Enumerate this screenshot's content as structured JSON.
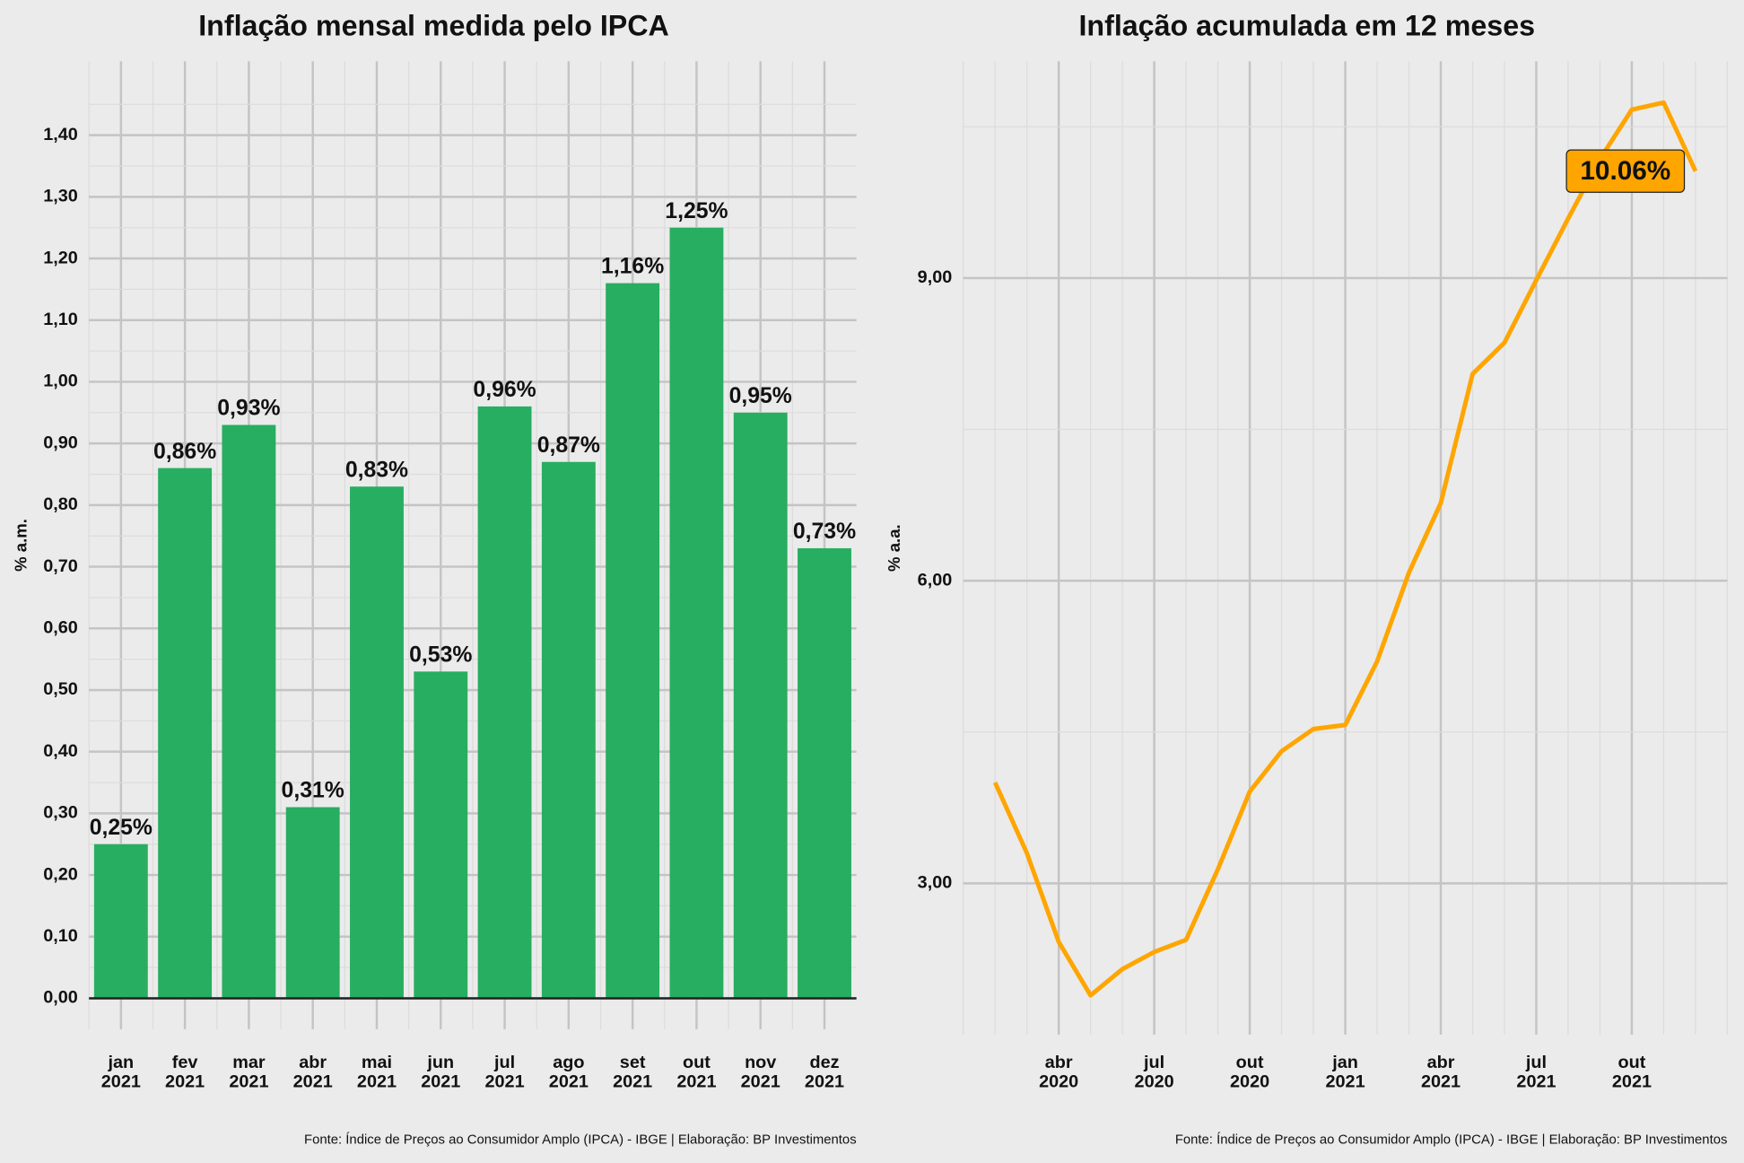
{
  "chart_data": [
    {
      "type": "bar",
      "title": "Inflação mensal medida pelo IPCA",
      "y_label": "% a.m.",
      "caption": "Fonte: Índice de Preços ao Consumidor Amplo (IPCA) - IBGE | Elaboração: BP Investimentos",
      "categories": [
        "jan\n2021",
        "fev\n2021",
        "mar\n2021",
        "abr\n2021",
        "mai\n2021",
        "jun\n2021",
        "jul\n2021",
        "ago\n2021",
        "set\n2021",
        "out\n2021",
        "nov\n2021",
        "dez\n2021"
      ],
      "values": [
        0.25,
        0.86,
        0.93,
        0.31,
        0.83,
        0.53,
        0.96,
        0.87,
        1.16,
        1.25,
        0.95,
        0.73
      ],
      "value_labels": [
        "0,25%",
        "0,86%",
        "0,93%",
        "0,31%",
        "0,83%",
        "0,53%",
        "0,96%",
        "0,87%",
        "1,16%",
        "1,25%",
        "0,95%",
        "0,73%"
      ],
      "color": "#27ae60",
      "grid": true,
      "ylim": [
        -0.05,
        1.52
      ],
      "yticks": [
        {
          "value": 0,
          "label": "0,00"
        },
        {
          "value": 0.1,
          "label": "0,10"
        },
        {
          "value": 0.2,
          "label": "0,20"
        },
        {
          "value": 0.3,
          "label": "0,30"
        },
        {
          "value": 0.4,
          "label": "0,40"
        },
        {
          "value": 0.5,
          "label": "0,50"
        },
        {
          "value": 0.6,
          "label": "0,60"
        },
        {
          "value": 0.7,
          "label": "0,70"
        },
        {
          "value": 0.8,
          "label": "0,80"
        },
        {
          "value": 0.9,
          "label": "0,90"
        },
        {
          "value": 1.0,
          "label": "1,00"
        },
        {
          "value": 1.1,
          "label": "1,10"
        },
        {
          "value": 1.2,
          "label": "1,20"
        },
        {
          "value": 1.3,
          "label": "1,30"
        },
        {
          "value": 1.4,
          "label": "1,40"
        }
      ]
    },
    {
      "type": "line",
      "title": "Inflação acumulada em 12 meses",
      "y_label": "% a.a.",
      "caption": "Fonte: Índice de Preços ao Consumidor Amplo (IPCA) - IBGE | Elaboração: BP Investimentos",
      "x": [
        "2020-02",
        "2020-03",
        "2020-04",
        "2020-05",
        "2020-06",
        "2020-07",
        "2020-08",
        "2020-09",
        "2020-10",
        "2020-11",
        "2020-12",
        "2021-01",
        "2021-02",
        "2021-03",
        "2021-04",
        "2021-05",
        "2021-06",
        "2021-07",
        "2021-08",
        "2021-09",
        "2021-10",
        "2021-11",
        "2021-12"
      ],
      "values": [
        4.0,
        3.3,
        2.42,
        1.89,
        2.15,
        2.32,
        2.44,
        3.14,
        3.91,
        4.31,
        4.53,
        4.57,
        5.2,
        6.08,
        6.77,
        8.05,
        8.36,
        8.98,
        9.59,
        10.18,
        10.67,
        10.74,
        10.06
      ],
      "color": "#ffa500",
      "grid": true,
      "annotation": "10.06%",
      "xlim": [
        "2020-01",
        "2022-01"
      ],
      "xticks": [
        {
          "value": "2020-04",
          "label": "abr\n2020"
        },
        {
          "value": "2020-07",
          "label": "jul\n2020"
        },
        {
          "value": "2020-10",
          "label": "out\n2020"
        },
        {
          "value": "2021-01",
          "label": "jan\n2021"
        },
        {
          "value": "2021-04",
          "label": "abr\n2021"
        },
        {
          "value": "2021-07",
          "label": "jul\n2021"
        },
        {
          "value": "2021-10",
          "label": "out\n2021"
        }
      ],
      "ylim": [
        1.5,
        11.15
      ],
      "yticks": [
        {
          "value": 3,
          "label": "3,00"
        },
        {
          "value": 6,
          "label": "6,00"
        },
        {
          "value": 9,
          "label": "9,00"
        }
      ]
    }
  ]
}
